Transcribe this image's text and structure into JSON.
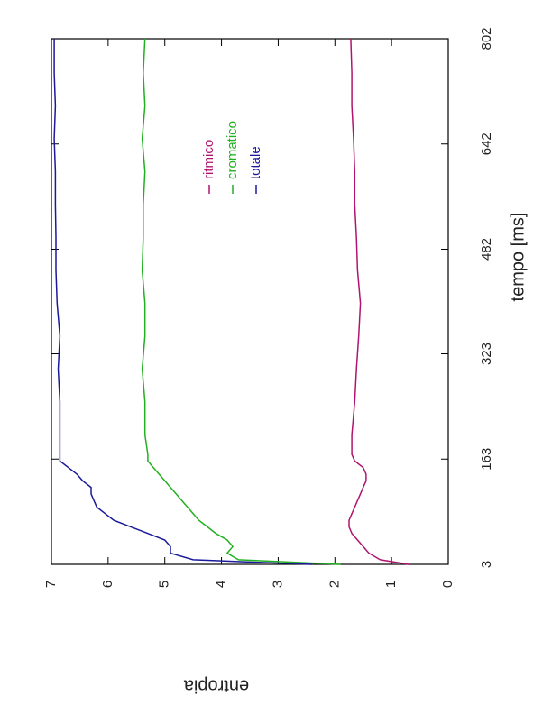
{
  "chart_data": {
    "type": "line",
    "x_label": "tempo [ms]",
    "y_label": "entropia",
    "x": [
      3,
      10,
      20,
      30,
      40,
      50,
      60,
      70,
      80,
      90,
      100,
      110,
      120,
      130,
      140,
      150,
      160,
      170,
      200,
      250,
      300,
      350,
      400,
      450,
      500,
      550,
      600,
      650,
      700,
      750,
      802
    ],
    "series": [
      {
        "name": "ritmico",
        "color": "#b0146e",
        "values": [
          0.7,
          1.2,
          1.4,
          1.5,
          1.6,
          1.7,
          1.75,
          1.75,
          1.7,
          1.65,
          1.6,
          1.55,
          1.5,
          1.45,
          1.45,
          1.5,
          1.65,
          1.7,
          1.7,
          1.65,
          1.62,
          1.58,
          1.55,
          1.6,
          1.62,
          1.65,
          1.65,
          1.67,
          1.7,
          1.7,
          1.72
        ]
      },
      {
        "name": "cromatico",
        "color": "#22b022",
        "values": [
          1.9,
          3.7,
          3.9,
          3.8,
          3.9,
          4.1,
          4.25,
          4.4,
          4.5,
          4.6,
          4.7,
          4.8,
          4.9,
          5.0,
          5.1,
          5.2,
          5.3,
          5.3,
          5.35,
          5.35,
          5.4,
          5.35,
          5.35,
          5.4,
          5.38,
          5.38,
          5.35,
          5.4,
          5.35,
          5.38,
          5.35
        ]
      },
      {
        "name": "totale",
        "color": "#1a1a9a",
        "values": [
          2.4,
          4.5,
          4.9,
          4.9,
          5.0,
          5.3,
          5.6,
          5.9,
          6.05,
          6.2,
          6.25,
          6.3,
          6.3,
          6.45,
          6.55,
          6.7,
          6.85,
          6.85,
          6.85,
          6.85,
          6.88,
          6.85,
          6.9,
          6.92,
          6.92,
          6.93,
          6.93,
          6.95,
          6.93,
          6.95,
          6.95
        ]
      }
    ],
    "xlim": [
      3,
      802
    ],
    "xticks": [
      3,
      163,
      323,
      482,
      642,
      802
    ],
    "ylim": [
      0,
      7
    ],
    "yticks": [
      0,
      1,
      2,
      3,
      4,
      5,
      6,
      7
    ]
  }
}
